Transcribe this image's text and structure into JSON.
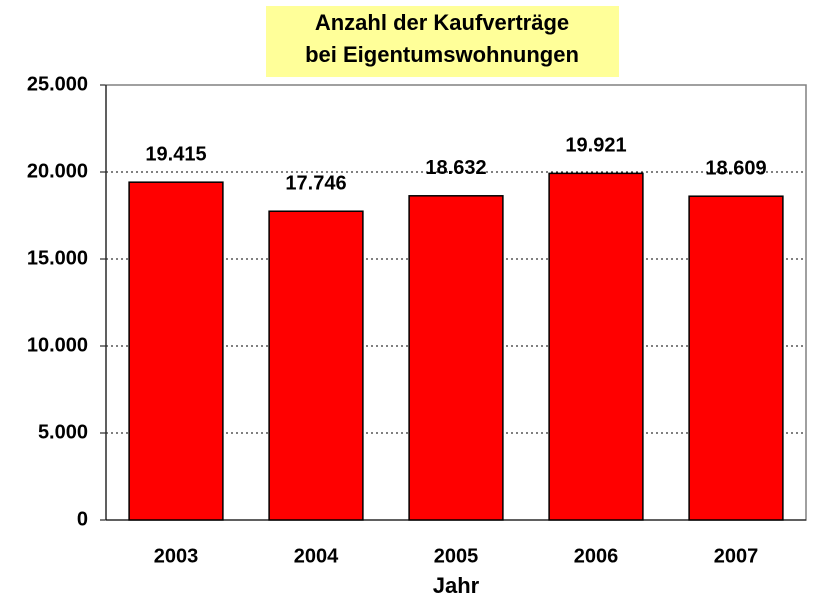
{
  "chart_data": {
    "type": "bar",
    "title": [
      "Anzahl der Kaufverträge",
      "bei Eigentumswohnungen"
    ],
    "x_label": "Jahr",
    "categories": [
      "2003",
      "2004",
      "2005",
      "2006",
      "2007"
    ],
    "values": [
      19415,
      17746,
      18632,
      19921,
      18609
    ],
    "value_labels": [
      "19.415",
      "17.746",
      "18.632",
      "19.921",
      "18.609"
    ],
    "color": "#ff0000",
    "ylim": [
      0,
      25000
    ],
    "yticks": [
      0,
      {
        "value": 5000,
        "label": "5.000"
      },
      {
        "value": 10000,
        "label": "10.000"
      },
      {
        "value": 15000,
        "label": "15.000"
      },
      {
        "value": 20000,
        "label": "20.000"
      },
      {
        "value": 25000,
        "label": "25.000"
      }
    ],
    "grid": true
  }
}
